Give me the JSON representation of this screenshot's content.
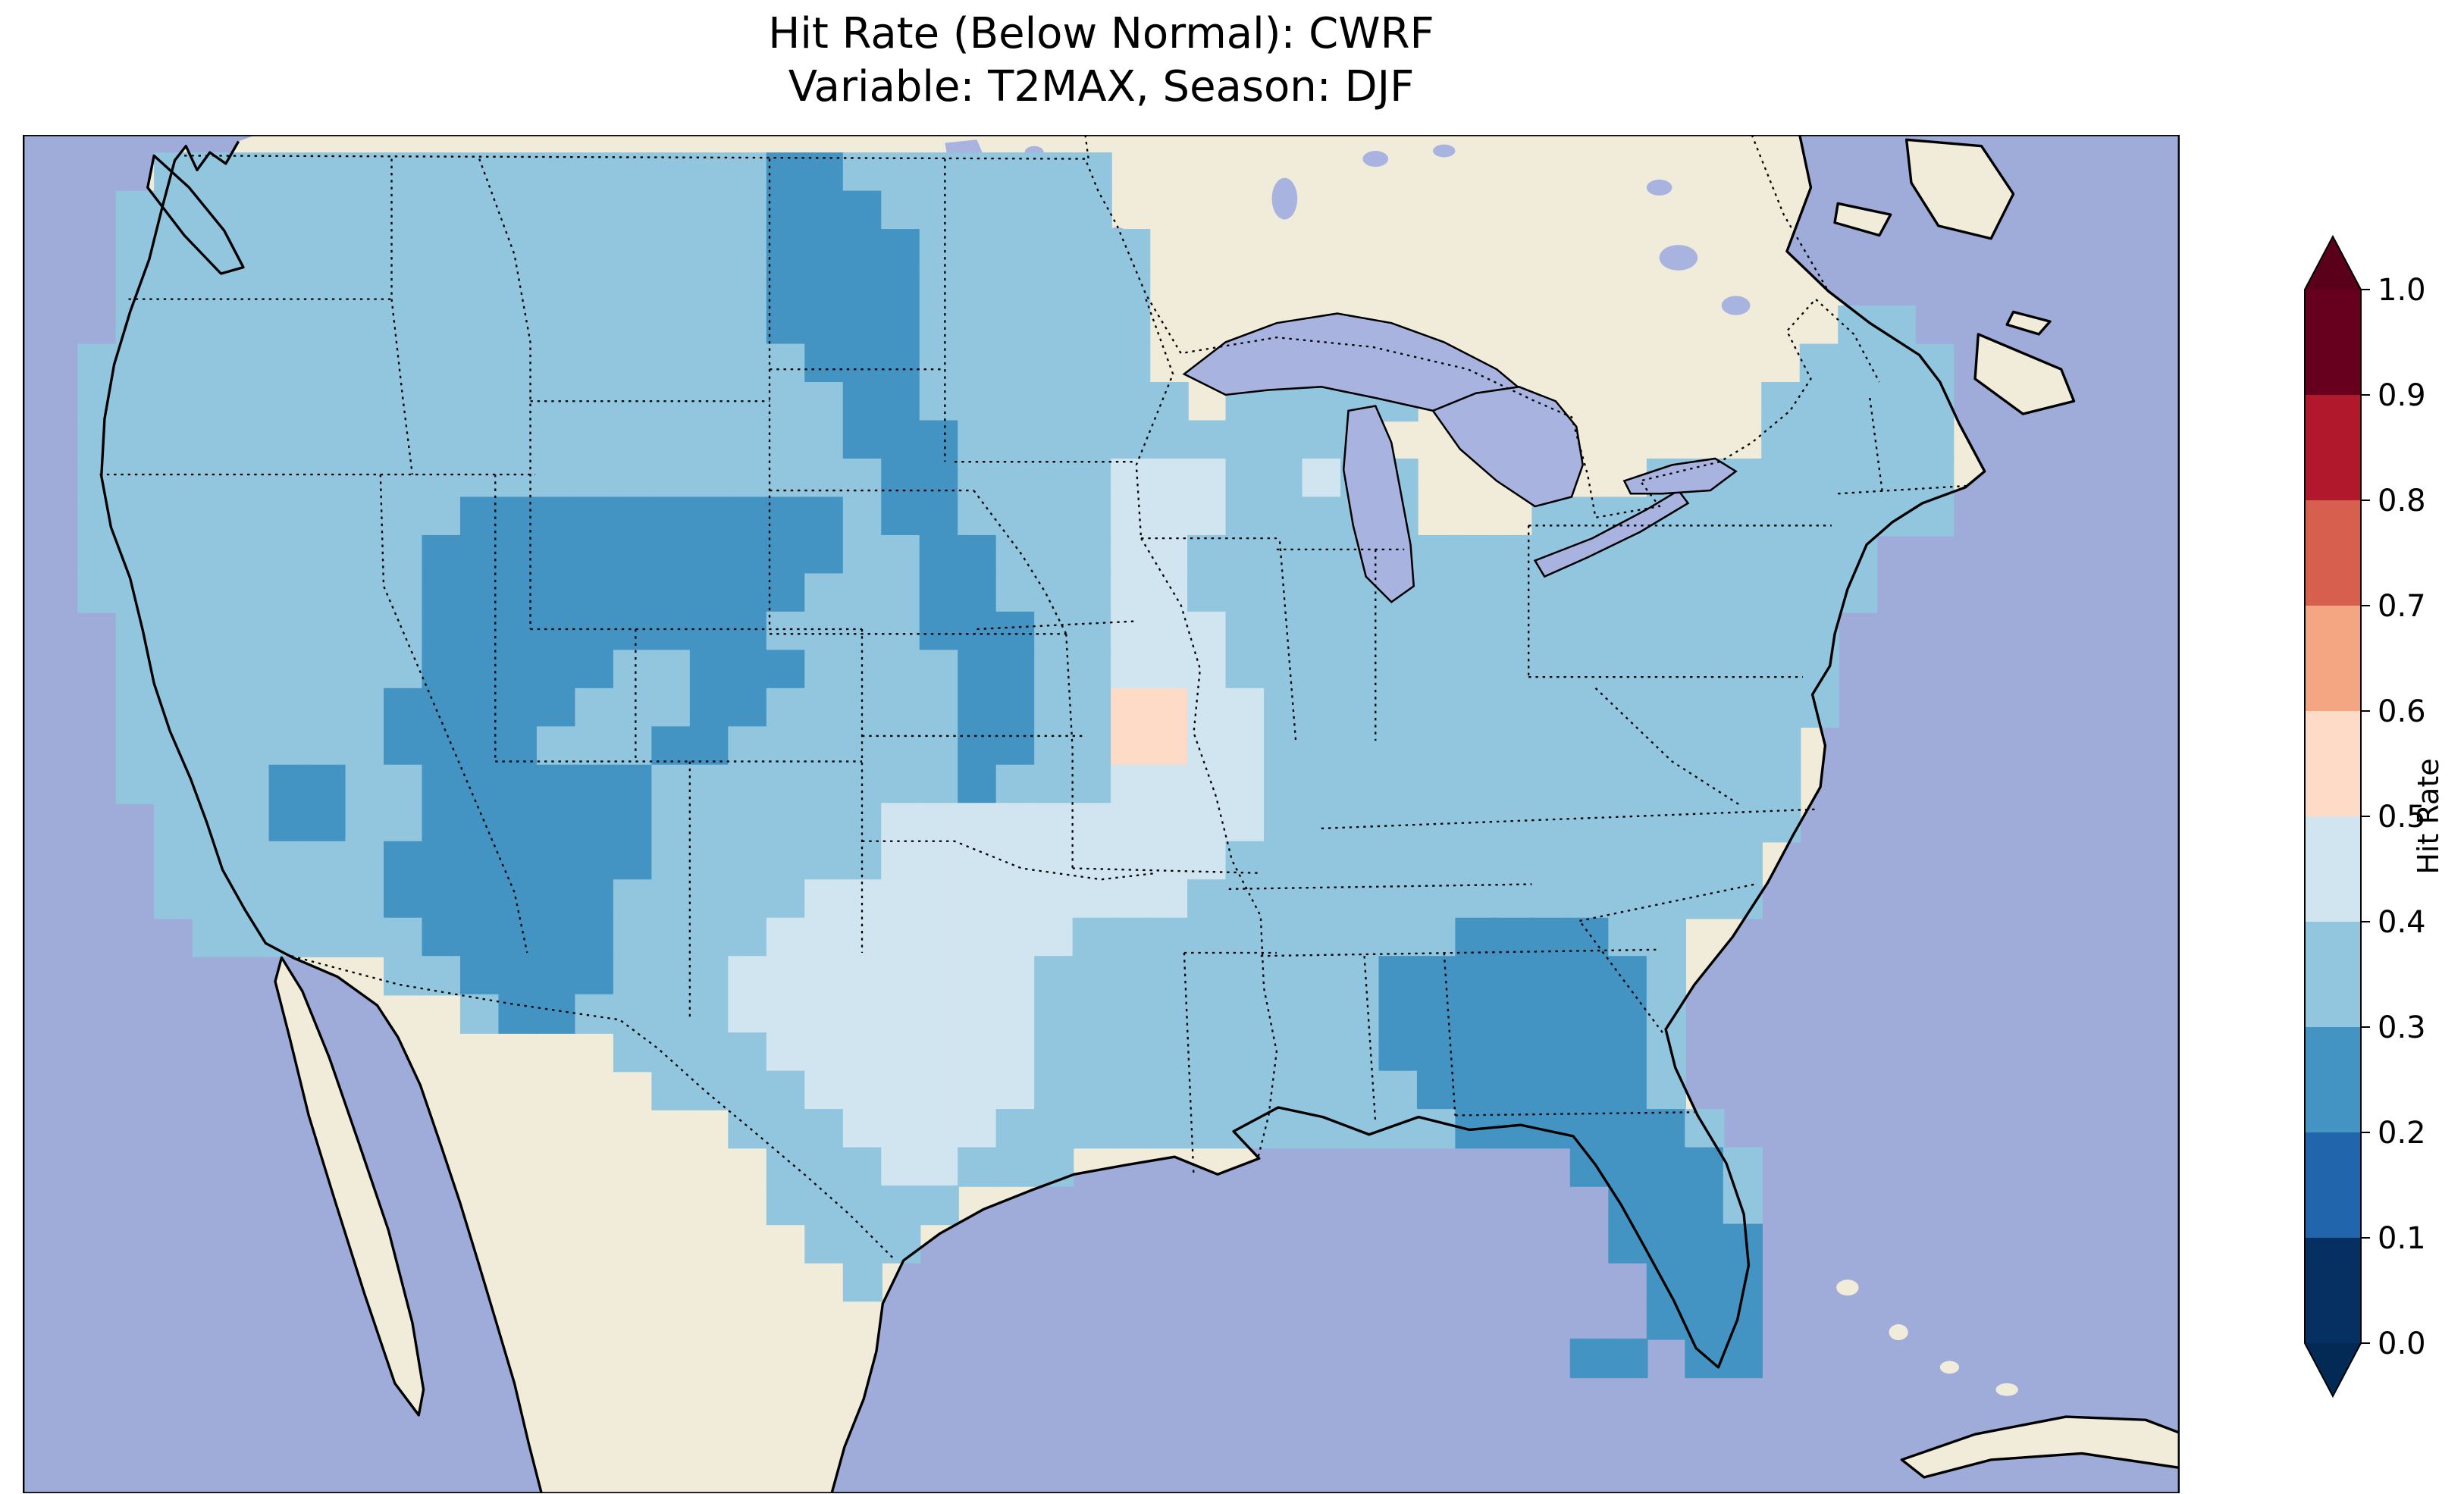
{
  "figure": {
    "title_line1": "Hit Rate (Below Normal): CWRF",
    "title_line2": "Variable: T2MAX, Season: DJF"
  },
  "colorbar": {
    "label": "Hit Rate",
    "ticks": [
      "1.0",
      "0.9",
      "0.8",
      "0.7",
      "0.6",
      "0.5",
      "0.4",
      "0.3",
      "0.2",
      "0.1",
      "0.0"
    ],
    "segment_colors_top_to_bottom": [
      "#67001f",
      "#b2182b",
      "#d6604d",
      "#f4a582",
      "#fddbc7",
      "#d1e5f0",
      "#92c5de",
      "#4393c3",
      "#2166ac",
      "#053061"
    ],
    "extend_over_color": "#5a001b",
    "extend_under_color": "#032a55"
  },
  "map": {
    "ocean_color": "#9fabd8",
    "land_color": "#f0ecd9",
    "lake_color": "#a9b3e0",
    "cell_size": 24,
    "bins": {
      "2": {
        "range": "0.2-0.3",
        "color": "#4393c3"
      },
      "3": {
        "range": "0.3-0.4",
        "color": "#92c5de"
      },
      "4": {
        "range": "0.4-0.5",
        "color": "#d1e5f0"
      },
      "5": {
        "range": "0.5-0.6",
        "color": "#fddbc7"
      }
    },
    "grid_rows": [
      {
        "r": 4,
        "s": [
          [
            4,
            19,
            "3"
          ],
          [
            20,
            21,
            "2"
          ],
          [
            22,
            28,
            "3"
          ]
        ]
      },
      {
        "r": 5,
        "s": [
          [
            3,
            19,
            "3"
          ],
          [
            20,
            22,
            "2"
          ],
          [
            23,
            28,
            "3"
          ]
        ]
      },
      {
        "r": 6,
        "s": [
          [
            3,
            19,
            "3"
          ],
          [
            20,
            23,
            "2"
          ],
          [
            24,
            29,
            "3"
          ]
        ]
      },
      {
        "r": 7,
        "s": [
          [
            3,
            19,
            "3"
          ],
          [
            20,
            23,
            "2"
          ],
          [
            24,
            29,
            "3"
          ]
        ]
      },
      {
        "r": 8,
        "s": [
          [
            3,
            19,
            "3"
          ],
          [
            20,
            23,
            "2"
          ],
          [
            24,
            29,
            "3"
          ],
          [
            48,
            49,
            "3"
          ]
        ]
      },
      {
        "r": 9,
        "s": [
          [
            2,
            20,
            "3"
          ],
          [
            21,
            23,
            "2"
          ],
          [
            24,
            29,
            "3"
          ],
          [
            47,
            50,
            "3"
          ]
        ]
      },
      {
        "r": 10,
        "s": [
          [
            2,
            21,
            "3"
          ],
          [
            22,
            23,
            "2"
          ],
          [
            24,
            30,
            "3"
          ],
          [
            32,
            36,
            "3"
          ],
          [
            46,
            50,
            "3"
          ]
        ]
      },
      {
        "r": 11,
        "s": [
          [
            2,
            21,
            "3"
          ],
          [
            22,
            24,
            "2"
          ],
          [
            25,
            35,
            "3"
          ],
          [
            46,
            50,
            "3"
          ]
        ]
      },
      {
        "r": 12,
        "s": [
          [
            2,
            22,
            "3"
          ],
          [
            23,
            24,
            "2"
          ],
          [
            25,
            28,
            "3"
          ],
          [
            29,
            31,
            "4"
          ],
          [
            32,
            33,
            "3"
          ],
          [
            34,
            34,
            "4"
          ],
          [
            35,
            36,
            "3"
          ],
          [
            43,
            50,
            "3"
          ]
        ]
      },
      {
        "r": 13,
        "s": [
          [
            2,
            11,
            "3"
          ],
          [
            12,
            21,
            "2"
          ],
          [
            22,
            22,
            "3"
          ],
          [
            23,
            24,
            "2"
          ],
          [
            25,
            28,
            "3"
          ],
          [
            29,
            31,
            "4"
          ],
          [
            32,
            36,
            "3"
          ],
          [
            40,
            50,
            "3"
          ]
        ]
      },
      {
        "r": 14,
        "s": [
          [
            2,
            10,
            "3"
          ],
          [
            11,
            21,
            "2"
          ],
          [
            22,
            23,
            "3"
          ],
          [
            24,
            25,
            "2"
          ],
          [
            26,
            28,
            "3"
          ],
          [
            29,
            30,
            "4"
          ],
          [
            31,
            48,
            "3"
          ]
        ]
      },
      {
        "r": 15,
        "s": [
          [
            2,
            10,
            "3"
          ],
          [
            11,
            20,
            "2"
          ],
          [
            21,
            23,
            "3"
          ],
          [
            24,
            25,
            "2"
          ],
          [
            26,
            28,
            "3"
          ],
          [
            29,
            30,
            "4"
          ],
          [
            31,
            48,
            "3"
          ]
        ]
      },
      {
        "r": 16,
        "s": [
          [
            3,
            10,
            "3"
          ],
          [
            11,
            19,
            "2"
          ],
          [
            20,
            23,
            "3"
          ],
          [
            24,
            26,
            "2"
          ],
          [
            27,
            28,
            "3"
          ],
          [
            29,
            31,
            "4"
          ],
          [
            32,
            47,
            "3"
          ]
        ]
      },
      {
        "r": 17,
        "s": [
          [
            3,
            10,
            "3"
          ],
          [
            11,
            15,
            "2"
          ],
          [
            16,
            17,
            "3"
          ],
          [
            18,
            20,
            "2"
          ],
          [
            21,
            24,
            "3"
          ],
          [
            25,
            26,
            "2"
          ],
          [
            27,
            28,
            "3"
          ],
          [
            29,
            31,
            "4"
          ],
          [
            32,
            47,
            "3"
          ]
        ]
      },
      {
        "r": 18,
        "s": [
          [
            3,
            9,
            "3"
          ],
          [
            10,
            14,
            "2"
          ],
          [
            15,
            17,
            "3"
          ],
          [
            18,
            19,
            "2"
          ],
          [
            20,
            24,
            "3"
          ],
          [
            25,
            26,
            "2"
          ],
          [
            27,
            28,
            "3"
          ],
          [
            29,
            30,
            "5"
          ],
          [
            31,
            32,
            "4"
          ],
          [
            33,
            47,
            "3"
          ]
        ]
      },
      {
        "r": 19,
        "s": [
          [
            3,
            9,
            "3"
          ],
          [
            10,
            13,
            "2"
          ],
          [
            14,
            16,
            "3"
          ],
          [
            17,
            18,
            "2"
          ],
          [
            19,
            24,
            "3"
          ],
          [
            25,
            26,
            "2"
          ],
          [
            27,
            28,
            "3"
          ],
          [
            29,
            30,
            "5"
          ],
          [
            31,
            32,
            "4"
          ],
          [
            33,
            46,
            "3"
          ]
        ]
      },
      {
        "r": 20,
        "s": [
          [
            3,
            6,
            "3"
          ],
          [
            7,
            8,
            "2"
          ],
          [
            9,
            10,
            "3"
          ],
          [
            11,
            16,
            "2"
          ],
          [
            17,
            24,
            "3"
          ],
          [
            25,
            25,
            "2"
          ],
          [
            26,
            28,
            "3"
          ],
          [
            29,
            32,
            "4"
          ],
          [
            33,
            46,
            "3"
          ]
        ]
      },
      {
        "r": 21,
        "s": [
          [
            4,
            6,
            "3"
          ],
          [
            7,
            8,
            "2"
          ],
          [
            9,
            10,
            "3"
          ],
          [
            11,
            16,
            "2"
          ],
          [
            17,
            22,
            "3"
          ],
          [
            23,
            32,
            "4"
          ],
          [
            33,
            46,
            "3"
          ]
        ]
      },
      {
        "r": 22,
        "s": [
          [
            4,
            9,
            "3"
          ],
          [
            10,
            16,
            "2"
          ],
          [
            17,
            22,
            "3"
          ],
          [
            23,
            31,
            "4"
          ],
          [
            32,
            45,
            "3"
          ]
        ]
      },
      {
        "r": 23,
        "s": [
          [
            4,
            9,
            "3"
          ],
          [
            10,
            15,
            "2"
          ],
          [
            16,
            20,
            "3"
          ],
          [
            21,
            30,
            "4"
          ],
          [
            31,
            45,
            "3"
          ]
        ]
      },
      {
        "r": 24,
        "s": [
          [
            5,
            10,
            "3"
          ],
          [
            11,
            15,
            "2"
          ],
          [
            16,
            19,
            "3"
          ],
          [
            20,
            27,
            "4"
          ],
          [
            28,
            37,
            "3"
          ],
          [
            38,
            41,
            "2"
          ],
          [
            42,
            43,
            "3"
          ]
        ]
      },
      {
        "r": 25,
        "s": [
          [
            10,
            11,
            "3"
          ],
          [
            12,
            15,
            "2"
          ],
          [
            16,
            18,
            "3"
          ],
          [
            19,
            26,
            "4"
          ],
          [
            27,
            35,
            "3"
          ],
          [
            36,
            42,
            "2"
          ],
          [
            43,
            43,
            "3"
          ]
        ]
      },
      {
        "r": 26,
        "s": [
          [
            12,
            12,
            "3"
          ],
          [
            13,
            14,
            "2"
          ],
          [
            15,
            18,
            "3"
          ],
          [
            19,
            26,
            "4"
          ],
          [
            27,
            35,
            "3"
          ],
          [
            36,
            42,
            "2"
          ],
          [
            43,
            43,
            "3"
          ]
        ]
      },
      {
        "r": 27,
        "s": [
          [
            16,
            19,
            "3"
          ],
          [
            20,
            26,
            "4"
          ],
          [
            27,
            35,
            "3"
          ],
          [
            36,
            42,
            "2"
          ],
          [
            43,
            43,
            "3"
          ]
        ]
      },
      {
        "r": 28,
        "s": [
          [
            17,
            20,
            "3"
          ],
          [
            21,
            26,
            "4"
          ],
          [
            27,
            36,
            "3"
          ],
          [
            37,
            42,
            "2"
          ],
          [
            43,
            43,
            "3"
          ]
        ]
      },
      {
        "r": 29,
        "s": [
          [
            19,
            21,
            "3"
          ],
          [
            22,
            25,
            "4"
          ],
          [
            26,
            37,
            "3"
          ],
          [
            38,
            43,
            "2"
          ],
          [
            44,
            44,
            "3"
          ]
        ]
      },
      {
        "r": 30,
        "s": [
          [
            20,
            22,
            "3"
          ],
          [
            23,
            24,
            "4"
          ],
          [
            25,
            27,
            "3"
          ],
          [
            41,
            44,
            "2"
          ],
          [
            45,
            45,
            "3"
          ]
        ]
      },
      {
        "r": 31,
        "s": [
          [
            20,
            24,
            "3"
          ],
          [
            42,
            44,
            "2"
          ],
          [
            45,
            45,
            "3"
          ]
        ]
      },
      {
        "r": 32,
        "s": [
          [
            21,
            23,
            "3"
          ],
          [
            42,
            45,
            "2"
          ]
        ]
      },
      {
        "r": 33,
        "s": [
          [
            22,
            22,
            "3"
          ],
          [
            43,
            45,
            "2"
          ]
        ]
      },
      {
        "r": 34,
        "s": [
          [
            43,
            45,
            "2"
          ]
        ]
      },
      {
        "r": 35,
        "s": [
          [
            41,
            42,
            "2"
          ],
          [
            44,
            45,
            "2"
          ]
        ]
      }
    ]
  }
}
